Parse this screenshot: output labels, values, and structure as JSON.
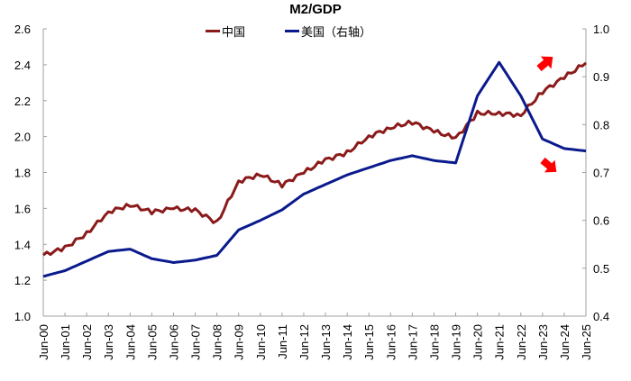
{
  "chart_data": {
    "type": "line",
    "title": "M2/GDP",
    "xlabel": "",
    "ylabel": "",
    "grid": false,
    "legend_position": "top",
    "x": [
      "Jun-00",
      "Jun-01",
      "Jun-02",
      "Jun-03",
      "Jun-04",
      "Jun-05",
      "Jun-06",
      "Jun-07",
      "Jun-08",
      "Jun-09",
      "Jun-10",
      "Jun-11",
      "Jun-12",
      "Jun-13",
      "Jun-14",
      "Jun-15",
      "Jun-16",
      "Jun-17",
      "Jun-18",
      "Jun-19",
      "Jun-20",
      "Jun-21",
      "Jun-22",
      "Jun-23",
      "Jun-24",
      "Jun-25"
    ],
    "series": [
      {
        "name": "中国",
        "axis": "left",
        "color": "#8B1A1A",
        "values": [
          1.34,
          1.38,
          1.46,
          1.58,
          1.62,
          1.58,
          1.6,
          1.59,
          1.52,
          1.75,
          1.79,
          1.73,
          1.8,
          1.87,
          1.91,
          2.0,
          2.05,
          2.08,
          2.03,
          1.99,
          2.13,
          2.13,
          2.12,
          2.25,
          2.33,
          2.41
        ]
      },
      {
        "name": "美国（右轴）",
        "axis": "right",
        "color": "#0A1A8C",
        "values": [
          0.483,
          0.495,
          0.515,
          0.535,
          0.54,
          0.52,
          0.512,
          0.517,
          0.527,
          0.58,
          0.6,
          0.622,
          0.655,
          0.675,
          0.695,
          0.71,
          0.725,
          0.735,
          0.725,
          0.72,
          0.86,
          0.93,
          0.86,
          0.77,
          0.75,
          0.745
        ]
      }
    ],
    "ylim_left": [
      1.0,
      2.6
    ],
    "ylim_right": [
      0.4,
      1.0
    ],
    "yticks_left": [
      "1.0",
      "1.2",
      "1.4",
      "1.6",
      "1.8",
      "2.0",
      "2.2",
      "2.4",
      "2.6"
    ],
    "yticks_right": [
      "0.4",
      "0.5",
      "0.6",
      "0.7",
      "0.8",
      "0.9",
      "1.0"
    ],
    "annotations": [
      {
        "type": "arrow",
        "direction": "up-right",
        "color": "#FF0000",
        "near": "中国 end"
      },
      {
        "type": "arrow",
        "direction": "down-right",
        "color": "#FF0000",
        "near": "美国 end"
      }
    ]
  },
  "legend": {
    "china_label": "中国",
    "us_label": "美国（右轴）"
  },
  "colors": {
    "china": "#8B1A1A",
    "us": "#0A1A8C",
    "arrow": "#FF0000",
    "axis": "#A0A0A0"
  }
}
